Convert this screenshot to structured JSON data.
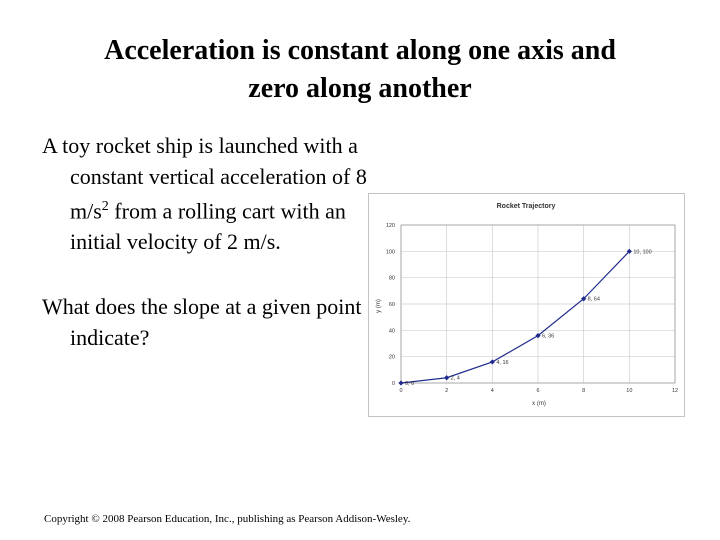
{
  "slide": {
    "title_line1": "Acceleration is constant along one axis and",
    "title_line2": "zero along another",
    "bullet1": "A toy rocket ship is launched with a constant vertical acceleration of 8 m/s",
    "bullet1_sup": "2",
    "bullet1_tail": " from a rolling cart with an initial velocity of 2 m/s.",
    "bullet2": "What does the slope at a given point indicate?",
    "footer": "Copyright © 2008 Pearson Education, Inc., publishing as Pearson Addison-Wesley."
  },
  "chart_data": {
    "type": "line",
    "title": "Rocket Trajectory",
    "xlabel": "x (m)",
    "ylabel": "y (m)",
    "xlim": [
      0,
      12
    ],
    "ylim": [
      0,
      120
    ],
    "xticks": [
      0,
      2,
      4,
      6,
      8,
      10,
      12
    ],
    "yticks": [
      0,
      20,
      40,
      60,
      80,
      100,
      120
    ],
    "grid": true,
    "points": [
      {
        "x": 0,
        "y": 0,
        "label": "0, 0"
      },
      {
        "x": 2,
        "y": 4,
        "label": "2, 4"
      },
      {
        "x": 4,
        "y": 16,
        "label": "4, 16"
      },
      {
        "x": 6,
        "y": 36,
        "label": "6, 36"
      },
      {
        "x": 8,
        "y": 64,
        "label": "8, 64"
      },
      {
        "x": 10,
        "y": 100,
        "label": "10, 100"
      }
    ],
    "line_color": "#1f2a8c"
  }
}
